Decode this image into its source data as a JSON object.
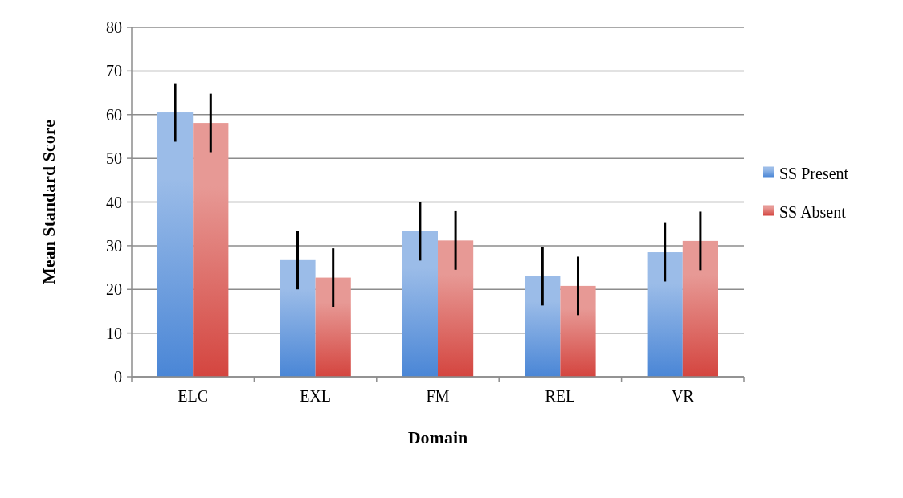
{
  "chart_data": {
    "type": "bar",
    "xlabel": "Domain",
    "ylabel": "Mean Standard Score",
    "categories": [
      "ELC",
      "EXL",
      "FM",
      "REL",
      "VR"
    ],
    "series": [
      {
        "name": "SS Present",
        "color": "#4a86d6",
        "values": [
          60.5,
          26.7,
          33.3,
          23.0,
          28.5
        ],
        "errors": [
          6.7,
          6.7,
          6.7,
          6.7,
          6.7
        ]
      },
      {
        "name": "SS Absent",
        "color": "#d4453f",
        "values": [
          58.1,
          22.7,
          31.2,
          20.8,
          31.1
        ],
        "errors": [
          6.7,
          6.7,
          6.7,
          6.7,
          6.7
        ]
      }
    ],
    "ylim": [
      0,
      80
    ],
    "yticks": [
      0,
      10,
      20,
      30,
      40,
      50,
      60,
      70,
      80
    ],
    "grid": "y",
    "legend": "right"
  }
}
